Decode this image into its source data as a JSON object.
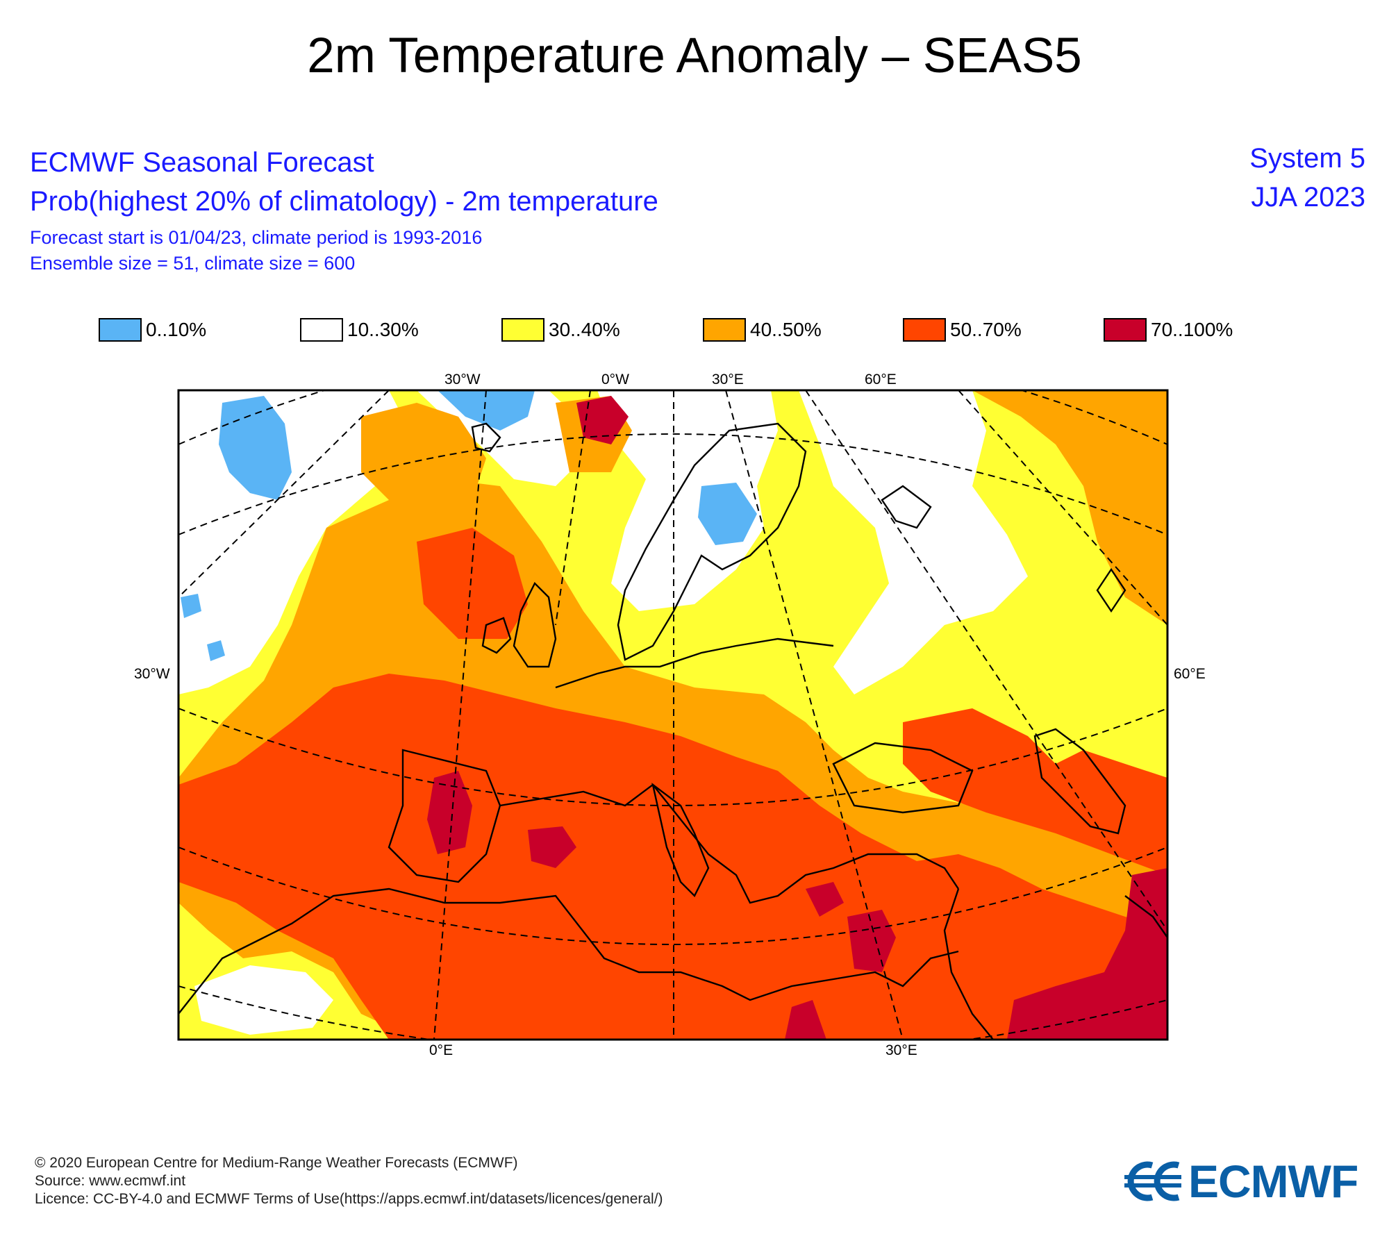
{
  "title": "2m Temperature Anomaly – SEAS5",
  "header": {
    "line1": "ECMWF Seasonal Forecast",
    "line2": "Prob(highest 20% of climatology) - 2m temperature",
    "line3": "Forecast start is 01/04/23, climate period is 1993-2016",
    "line4": "Ensemble size = 51, climate size = 600",
    "system": "System 5",
    "season": "JJA 2023"
  },
  "legend": [
    {
      "label": "0..10%",
      "color": "#5ab4f5"
    },
    {
      "label": "10..30%",
      "color": "#ffffff"
    },
    {
      "label": "30..40%",
      "color": "#ffff33"
    },
    {
      "label": "40..50%",
      "color": "#ffa500"
    },
    {
      "label": "50..70%",
      "color": "#ff4500"
    },
    {
      "label": "70..100%",
      "color": "#c8002a"
    }
  ],
  "map_labels": {
    "top": [
      "30°W",
      "0°W",
      "30°E",
      "60°E"
    ],
    "left": "30°W",
    "right": "60°E",
    "bottom": [
      "0°E",
      "30°E"
    ]
  },
  "footer": {
    "copyright": "© 2020 European Centre for Medium-Range Weather Forecasts (ECMWF)",
    "source": "Source: www.ecmwf.int",
    "licence": "Licence: CC-BY-4.0 and ECMWF Terms of Use(https://apps.ecmwf.int/datasets/licences/general/)"
  },
  "logo": {
    "text": "ECMWF",
    "color": "#0a5fa6"
  }
}
